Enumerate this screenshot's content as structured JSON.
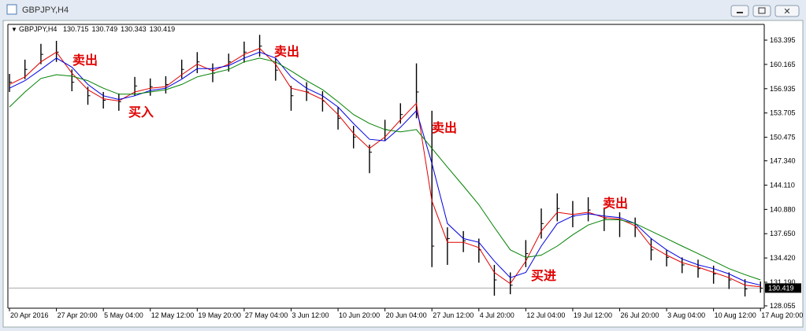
{
  "window": {
    "title": "GBPJPY,H4"
  },
  "chart_data": {
    "type": "ohlc",
    "title": "GBPJPY,H4",
    "quote": [
      130.715,
      130.749,
      130.343,
      130.419
    ],
    "x": [
      0,
      0.33,
      0.67,
      1,
      1.33,
      1.67,
      2,
      2.33,
      2.67,
      3,
      3.33,
      3.67,
      4,
      4.33,
      4.67,
      5,
      5.33,
      5.67,
      6,
      6.33,
      6.67,
      7,
      7.33,
      7.67,
      8,
      8.33,
      8.67,
      9,
      9.33,
      9.67,
      10,
      10.33,
      10.67,
      11,
      11.33,
      11.67,
      12,
      12.33,
      12.67,
      13,
      13.33,
      13.67,
      14,
      14.33,
      14.67,
      15,
      15.33,
      15.67,
      16
    ],
    "high": [
      158.9,
      160.8,
      162.9,
      163.3,
      159.5,
      157.2,
      156.5,
      156.3,
      158.5,
      158.3,
      158.6,
      160.8,
      161.8,
      160.3,
      161.6,
      163.2,
      164.1,
      161,
      157.3,
      157.8,
      156.6,
      154.5,
      152,
      149.5,
      152.8,
      155,
      160.3,
      154,
      138.5,
      138,
      137,
      133.5,
      132.5,
      136.8,
      141,
      143,
      142,
      142.5,
      141,
      140.5,
      139.8,
      137,
      135.5,
      134.5,
      134.2,
      133.4,
      132.5,
      131.6,
      131.3
    ],
    "low": [
      156.5,
      158.2,
      160.2,
      160.5,
      156.6,
      154.8,
      154.3,
      154,
      156,
      156,
      156.3,
      158.3,
      159,
      157.8,
      159.2,
      160.4,
      161.2,
      158,
      154,
      155.3,
      153.9,
      151.5,
      149,
      145.7,
      150,
      152.3,
      153,
      133.2,
      133.5,
      135.2,
      133.8,
      129.4,
      129.6,
      133.2,
      137,
      139.3,
      138.5,
      139.3,
      138,
      137.2,
      137.2,
      134.1,
      133.3,
      132.4,
      131.8,
      131,
      130.3,
      129.3,
      129.8
    ],
    "close": [
      157.8,
      159.5,
      161.5,
      161.8,
      157.8,
      156,
      155.4,
      155.2,
      157.3,
      157.2,
      157.5,
      159.5,
      160.5,
      159,
      160.5,
      161.8,
      162.6,
      159.4,
      156,
      156.5,
      155.3,
      153,
      150.5,
      148.5,
      151.5,
      153.5,
      156.5,
      136,
      137,
      136.7,
      135.5,
      131.5,
      130.8,
      135,
      139,
      141,
      140,
      140.8,
      139.7,
      139.5,
      138.5,
      135.5,
      134.5,
      133.5,
      133,
      132.3,
      131.5,
      130.3,
      130.4
    ],
    "lines": [
      {
        "color": "#e00000",
        "values": [
          157.5,
          158.5,
          160.5,
          161.8,
          159,
          156.8,
          155.6,
          155.3,
          156.5,
          157,
          157.2,
          158.8,
          160.2,
          159.3,
          160.2,
          161.5,
          162.3,
          160.2,
          157,
          156.5,
          155.5,
          153.5,
          151,
          149,
          150.5,
          152.8,
          155,
          142,
          136.5,
          136.5,
          135.8,
          132.5,
          131,
          134,
          138,
          140.5,
          140.2,
          140.5,
          139.8,
          139.6,
          138.7,
          136,
          134.8,
          133.8,
          133.2,
          132.5,
          131.8,
          130.8,
          130.6
        ]
      },
      {
        "color": "#0000e0",
        "values": [
          157,
          158,
          159.5,
          161,
          159.8,
          157.5,
          156,
          155.5,
          156,
          156.7,
          157,
          158.2,
          159.6,
          159.6,
          160,
          161,
          161.8,
          161,
          158.5,
          157,
          156,
          154.5,
          152.3,
          150.2,
          150,
          151.8,
          154,
          147,
          139,
          137,
          136.5,
          134,
          131.8,
          132.5,
          136,
          139,
          140,
          140.3,
          140,
          139.8,
          139,
          137,
          135.5,
          134.3,
          133.5,
          133,
          132.3,
          131.3,
          130.8
        ]
      },
      {
        "color": "#008000",
        "values": [
          154.5,
          156.5,
          158.3,
          158.8,
          158.6,
          158,
          157,
          156.2,
          156.2,
          156.5,
          156.8,
          157.5,
          158.5,
          159,
          159.5,
          160.5,
          161,
          160.5,
          159.3,
          158,
          156.8,
          155.2,
          153.5,
          152.3,
          151.5,
          151.2,
          151.5,
          149,
          146.5,
          144,
          141.5,
          138.5,
          135.5,
          134.5,
          134.8,
          136,
          137.5,
          138.8,
          139.5,
          139.5,
          139,
          138,
          137,
          136,
          135,
          134,
          133,
          132.2,
          131.5
        ]
      }
    ],
    "last_price": 130.419,
    "xlim": [
      -0.034,
      16.08
    ],
    "ylim": [
      127.74,
      165.49
    ],
    "yticks": [
      163.395,
      160.165,
      156.935,
      153.705,
      150.475,
      {
        "value": 147.34,
        "label": "147.340"
      },
      {
        "value": 144.11,
        "label": "144.110"
      },
      {
        "value": 140.88,
        "label": "140.880"
      },
      {
        "value": 137.65,
        "label": "137.650"
      },
      {
        "value": 134.42,
        "label": "134.420"
      },
      {
        "value": 131.19,
        "label": "131.190"
      },
      128.055
    ],
    "xticks": [
      {
        "value": 0,
        "label": "20 Apr 2016"
      },
      {
        "value": 1,
        "label": "27 Apr 20:00"
      },
      {
        "value": 2,
        "label": "5 May 04:00"
      },
      {
        "value": 3,
        "label": "12 May 12:00"
      },
      {
        "value": 4,
        "label": "19 May 20:00"
      },
      {
        "value": 5,
        "label": "27 May 04:00"
      },
      {
        "value": 6,
        "label": "3 Jun 12:00"
      },
      {
        "value": 7,
        "label": "10 Jun 20:00"
      },
      {
        "value": 8,
        "label": "20 Jun 04:00"
      },
      {
        "value": 9,
        "label": "27 Jun 12:00"
      },
      {
        "value": 10,
        "label": "4 Jul 20:00"
      },
      {
        "value": 11,
        "label": "12 Jul 04:00"
      },
      {
        "value": 12,
        "label": "19 Jul 12:00"
      },
      {
        "value": 13,
        "label": "26 Jul 20:00"
      },
      {
        "value": 14,
        "label": "3 Aug 04:00"
      },
      {
        "value": 15,
        "label": "10 Aug 12:00"
      },
      {
        "value": 16,
        "label": "17 Aug 20:00"
      }
    ],
    "annotations": [
      "卖出",
      "买入",
      "卖出",
      "卖出",
      "买进",
      "卖出"
    ],
    "annotation_color": "#e00000"
  }
}
